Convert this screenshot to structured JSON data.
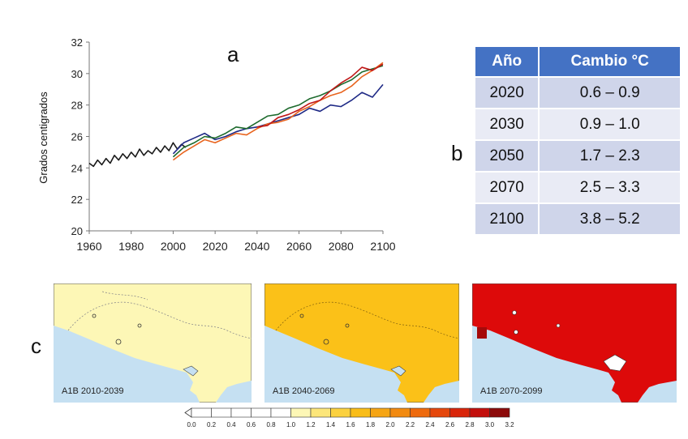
{
  "labels": {
    "a": "a",
    "b": "b",
    "c": "c"
  },
  "chart_data": {
    "type": "line",
    "ylabel": "Grados centigrados",
    "xlim": [
      1960,
      2100
    ],
    "ylim": [
      20,
      32
    ],
    "xticks": [
      "1960",
      "1980",
      "2000",
      "2020",
      "2040",
      "2060",
      "2080",
      "2100"
    ],
    "yticks": [
      "20",
      "22",
      "24",
      "26",
      "28",
      "30",
      "32"
    ],
    "grid": false,
    "colors": {
      "historical": "#1a1a1a",
      "navy": "#1f2a86",
      "green": "#1e6b2e",
      "orange": "#e8641e",
      "red": "#c01818"
    },
    "series": [
      {
        "x": [
          1960,
          1962,
          1964,
          1966,
          1968,
          1970,
          1972,
          1974,
          1976,
          1978,
          1980,
          1982,
          1984,
          1986,
          1988,
          1990,
          1992,
          1994,
          1996,
          1998,
          2000,
          2002,
          2004,
          2006
        ],
        "values": [
          24.3,
          24.1,
          24.5,
          24.2,
          24.6,
          24.3,
          24.8,
          24.5,
          24.9,
          24.6,
          25.0,
          24.7,
          25.2,
          24.8,
          25.1,
          24.9,
          25.3,
          25.0,
          25.4,
          25.1,
          25.6,
          25.2,
          25.5,
          25.3
        ]
      },
      {
        "x": [
          2000,
          2005,
          2010,
          2015,
          2020,
          2025,
          2030,
          2035,
          2040,
          2045,
          2050,
          2055,
          2060,
          2065,
          2070,
          2075,
          2080,
          2085,
          2090,
          2095,
          2100
        ],
        "values": [
          24.9,
          25.6,
          25.9,
          26.2,
          25.8,
          26.0,
          26.3,
          26.5,
          26.6,
          26.8,
          27.0,
          27.2,
          27.4,
          27.8,
          27.6,
          28.0,
          27.9,
          28.3,
          28.8,
          28.5,
          29.3
        ]
      },
      {
        "x": [
          2000,
          2005,
          2010,
          2015,
          2020,
          2025,
          2030,
          2035,
          2040,
          2045,
          2050,
          2055,
          2060,
          2065,
          2070,
          2075,
          2080,
          2085,
          2090,
          2095,
          2100
        ],
        "values": [
          24.7,
          25.3,
          25.6,
          26.0,
          25.9,
          26.2,
          26.6,
          26.5,
          26.9,
          27.3,
          27.4,
          27.8,
          28.0,
          28.4,
          28.6,
          28.9,
          29.3,
          29.6,
          30.1,
          30.3,
          30.5
        ]
      },
      {
        "x": [
          2000,
          2005,
          2010,
          2015,
          2020,
          2025,
          2030,
          2035,
          2040,
          2045,
          2050,
          2055,
          2060,
          2065,
          2070,
          2075,
          2080,
          2085,
          2090,
          2095,
          2100
        ],
        "values": [
          24.5,
          25.0,
          25.4,
          25.8,
          25.6,
          25.9,
          26.2,
          26.1,
          26.5,
          26.8,
          26.9,
          27.1,
          27.6,
          27.9,
          28.3,
          28.6,
          28.8,
          29.2,
          29.8,
          30.2,
          30.7
        ]
      },
      {
        "x": [
          2040,
          2045,
          2050,
          2055,
          2060,
          2065,
          2070,
          2075,
          2080,
          2085,
          2090,
          2095,
          2100
        ],
        "values": [
          26.6,
          26.7,
          27.2,
          27.4,
          27.7,
          28.1,
          28.3,
          28.9,
          29.4,
          29.8,
          30.4,
          30.2,
          30.6
        ]
      }
    ]
  },
  "table": {
    "headers": [
      "Año",
      "Cambio °C"
    ],
    "rows": [
      [
        "2020",
        "0.6 – 0.9"
      ],
      [
        "2030",
        "0.9 – 1.0"
      ],
      [
        "2050",
        "1.7 – 2.3"
      ],
      [
        "2070",
        "2.5 – 3.3"
      ],
      [
        "2100",
        "3.8 – 5.2"
      ]
    ]
  },
  "maps": [
    {
      "label": "A1B  2010-2039",
      "fill": "#fdf7b6"
    },
    {
      "label": "A1B  2040-2069",
      "fill": "#fbc118"
    },
    {
      "label": "A1B  2070-2099",
      "fill": "#dd0a0a"
    }
  ],
  "colorbar": {
    "ticks": [
      "0.0",
      "0.2",
      "0.4",
      "0.6",
      "0.8",
      "1.0",
      "1.2",
      "1.4",
      "1.6",
      "1.8",
      "2.0",
      "2.2",
      "2.4",
      "2.6",
      "2.8",
      "3.0",
      "3.2"
    ],
    "colors": [
      "#ffffff",
      "#ffffff",
      "#ffffff",
      "#ffffff",
      "#ffffff",
      "#fdf7b6",
      "#fce67a",
      "#fbd13f",
      "#f9bd18",
      "#f6a514",
      "#f28a10",
      "#ee6a0e",
      "#e5470c",
      "#d9250a",
      "#c30f0c",
      "#8c0a0a"
    ]
  }
}
